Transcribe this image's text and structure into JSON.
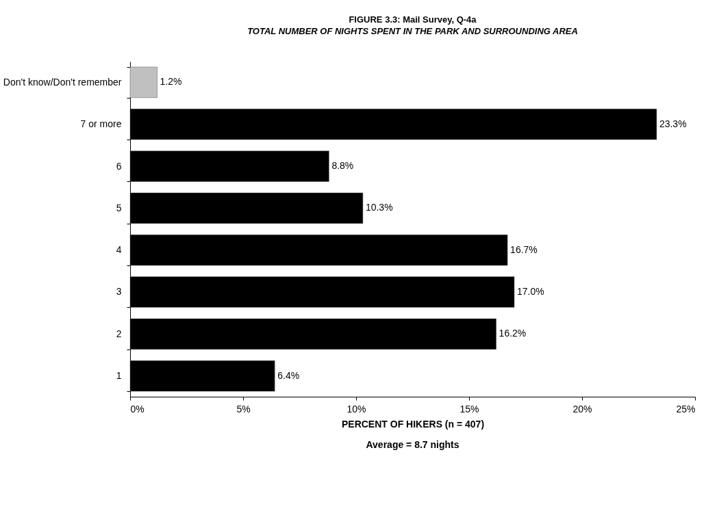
{
  "chart_data": {
    "type": "bar",
    "orientation": "horizontal",
    "title": "FIGURE 3.3:  Mail Survey, Q-4a",
    "subtitle": "TOTAL NUMBER OF NIGHTS SPENT IN THE PARK AND SURROUNDING AREA",
    "xlabel": "PERCENT OF HIKERS (n = 407)",
    "annotations": [
      "Average = 8.7 nights"
    ],
    "categories": [
      "Don't know/Don't remember",
      "7 or more",
      "6",
      "5",
      "4",
      "3",
      "2",
      "1"
    ],
    "values": [
      1.2,
      23.3,
      8.8,
      10.3,
      16.7,
      17.0,
      16.2,
      6.4
    ],
    "value_labels": [
      "1.2%",
      "23.3%",
      "8.8%",
      "10.3%",
      "16.7%",
      "17.0%",
      "16.2%",
      "6.4%"
    ],
    "colors": [
      "#c0c0c0",
      "#000000",
      "#000000",
      "#000000",
      "#000000",
      "#000000",
      "#000000",
      "#000000"
    ],
    "xlim": [
      0,
      25
    ],
    "xticks": [
      {
        "value": 0,
        "label": "0%"
      },
      {
        "value": 5,
        "label": "5%"
      },
      {
        "value": 10,
        "label": "10%"
      },
      {
        "value": 15,
        "label": "15%"
      },
      {
        "value": 20,
        "label": "20%"
      },
      {
        "value": 25,
        "label": "25%"
      }
    ],
    "grid": false
  }
}
